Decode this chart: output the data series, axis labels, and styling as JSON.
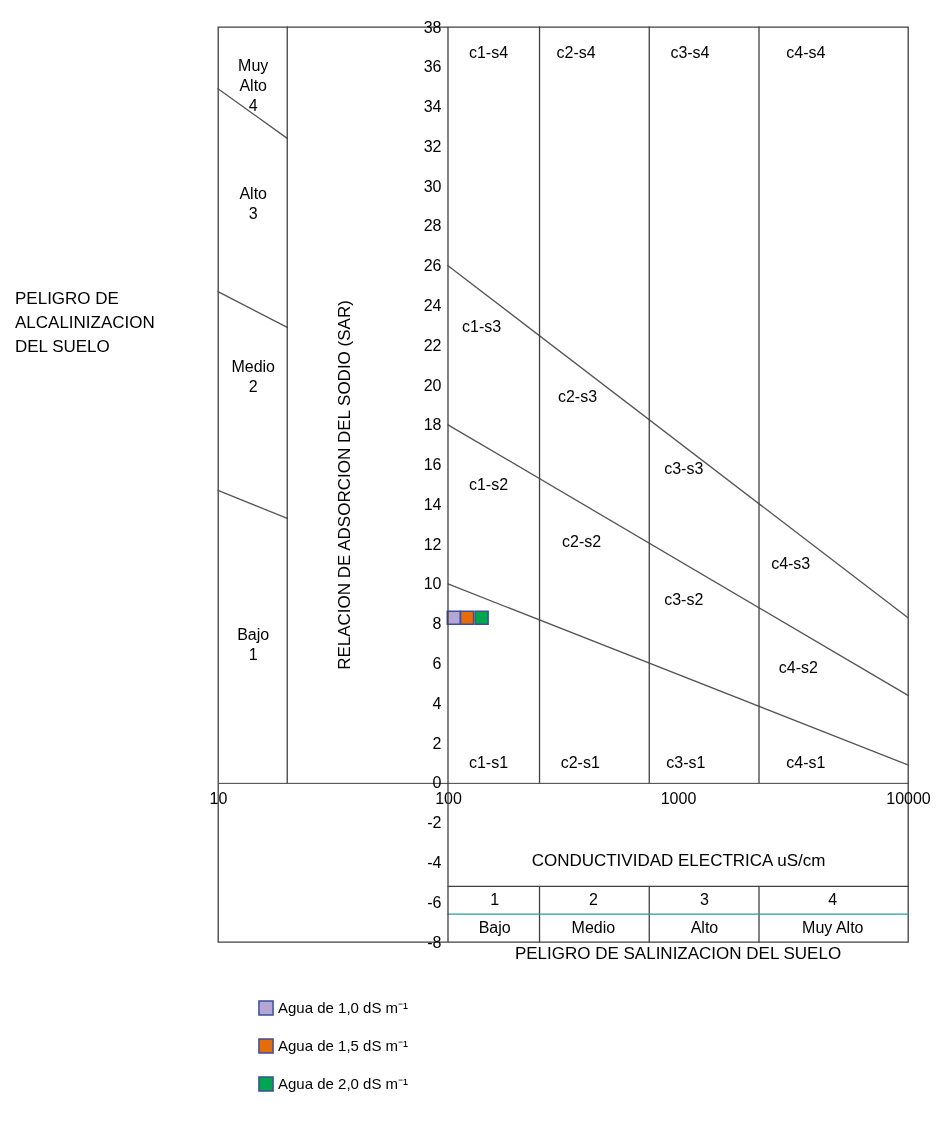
{
  "chart_data": {
    "type": "scatter",
    "xlabel": "CONDUCTIVIDAD ELECTRICA uS/cm",
    "ylabel": "RELACION DE ADSORCION DEL SODIO (SAR)",
    "log": "x",
    "xlim": [
      10,
      10000
    ],
    "xticks": [
      10,
      100,
      1000,
      10000
    ],
    "ylim": [
      -8,
      38
    ],
    "yticks": [
      -8,
      -6,
      -4,
      -2,
      0,
      2,
      4,
      6,
      8,
      10,
      12,
      14,
      16,
      18,
      20,
      22,
      24,
      26,
      28,
      30,
      32,
      34,
      36,
      38
    ],
    "legend": "bottom left",
    "grid": false,
    "series": [
      {
        "name": "Agua de 1,0 dS m⁻¹",
        "color": "#b4a7d6",
        "marker": "square",
        "x": [
          106
        ],
        "values": [
          8.3
        ]
      },
      {
        "name": "Agua de 1,5 dS m⁻¹",
        "color": "#e46c0a",
        "marker": "square",
        "x": [
          121
        ],
        "values": [
          8.3
        ]
      },
      {
        "name": "Agua de 2,0 dS m⁻¹",
        "color": "#00a550",
        "marker": "square",
        "x": [
          140
        ],
        "values": [
          8.3
        ]
      },
      {
        "type": "line",
        "color": "#555555",
        "x": [
          100,
          10000
        ],
        "values": [
          26,
          8.3
        ]
      },
      {
        "type": "line",
        "color": "#555555",
        "x": [
          100,
          10000
        ],
        "values": [
          18,
          4.4
        ]
      },
      {
        "type": "line",
        "color": "#555555",
        "x": [
          100,
          10000
        ],
        "values": [
          10,
          0.9
        ]
      },
      {
        "type": "line",
        "color": "#555555",
        "x": [
          10,
          20
        ],
        "values": [
          34.9,
          32.4
        ]
      },
      {
        "type": "line",
        "color": "#555555",
        "x": [
          10,
          20
        ],
        "values": [
          24.7,
          22.9
        ]
      },
      {
        "type": "line",
        "color": "#555555",
        "x": [
          10,
          20
        ],
        "values": [
          14.7,
          13.3
        ]
      },
      {
        "type": "line",
        "color": "#404040",
        "x": [
          20,
          20
        ],
        "values": [
          0,
          38
        ]
      },
      {
        "type": "line",
        "color": "#404040",
        "x": [
          250,
          250
        ],
        "values": [
          0,
          38
        ]
      },
      {
        "type": "line",
        "color": "#404040",
        "x": [
          750,
          750
        ],
        "values": [
          0,
          38
        ]
      },
      {
        "type": "line",
        "color": "#404040",
        "x": [
          2250,
          2250
        ],
        "values": [
          0,
          38
        ]
      },
      {
        "type": "line",
        "color": "#404040",
        "x": [
          250,
          250
        ],
        "values": [
          -5.2,
          -8
        ]
      },
      {
        "type": "line",
        "color": "#404040",
        "x": [
          750,
          750
        ],
        "values": [
          -5.2,
          -8
        ]
      },
      {
        "type": "line",
        "color": "#404040",
        "x": [
          2250,
          2250
        ],
        "values": [
          -5.2,
          -8
        ]
      },
      {
        "type": "line",
        "color": "#404040",
        "x": [
          100,
          10000
        ],
        "values": [
          -5.2,
          -5.2
        ]
      },
      {
        "type": "line",
        "color": "#2a9d9a",
        "x": [
          100,
          10000
        ],
        "values": [
          -6.6,
          -6.6
        ]
      }
    ],
    "ref_lines": [
      {
        "axis": "x",
        "value": 100,
        "color": "#404040"
      }
    ],
    "annotations": [
      "PELIGRO DE\nALCALINIZACION\nDEL SUELO",
      "PELIGRO DE SALINIZACION DEL SUELO",
      "c1-s4",
      "c2-s4",
      "c3-s4",
      "c4-s4",
      "c1-s3",
      "c2-s3",
      "c3-s3",
      "c4-s3",
      "c1-s2",
      "c2-s2",
      "c3-s2",
      "c4-s2",
      "c1-s1",
      "c2-s1",
      "c3-s1",
      "c4-s1",
      "Muy\nAlto\n4",
      "Alto\n3",
      "Medio\n2",
      "Bajo\n1",
      "1",
      "2",
      "3",
      "4",
      "Bajo",
      "Medio",
      "Alto",
      "Muy Alto"
    ]
  }
}
